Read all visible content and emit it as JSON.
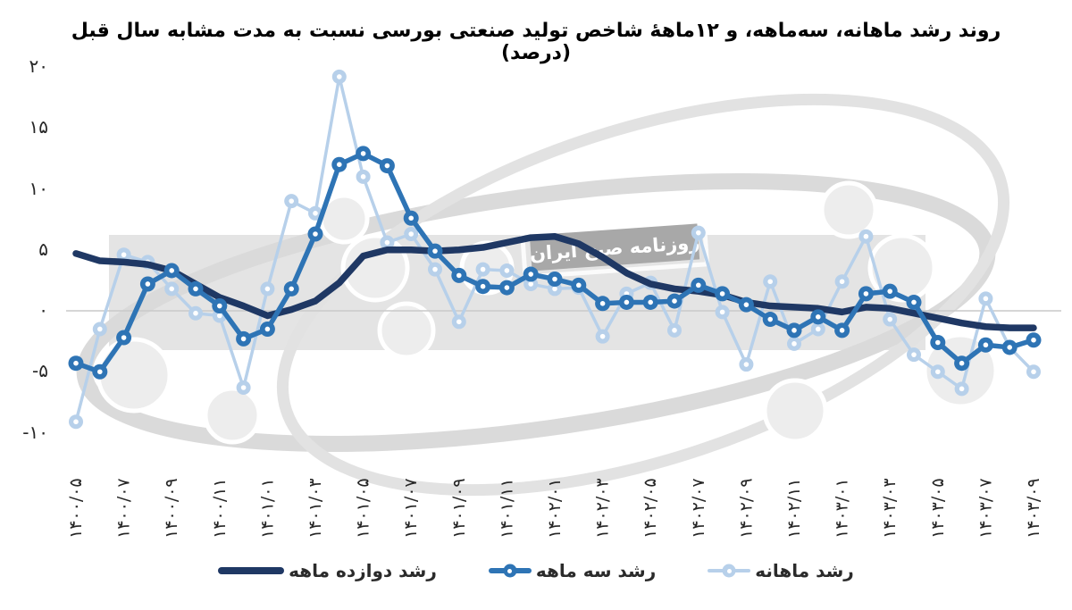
{
  "title": "روند رشد ماهانه، سه‌ماهه، و ۱۲ماهۀ شاخص تولید صنعتی بورسی نسبت به مدت مشابه سال قبل (درصد)",
  "watermark": {
    "stamp_text": "روزنامه صبح ایران"
  },
  "legend": [
    {
      "label": "رشد دوازده ماهه",
      "color": "#1F3864",
      "marker": false
    },
    {
      "label": "رشد سه ماهه",
      "color": "#2E74B5",
      "marker": true
    },
    {
      "label": "رشد ماهانه",
      "color": "#B7D0EA",
      "marker": true
    }
  ],
  "chart_data": {
    "type": "line",
    "title": "روند رشد ماهانه، سه‌ماهه، و ۱۲ماهۀ شاخص تولید صنعتی بورسی نسبت به مدت مشابه سال قبل (درصد)",
    "ylabel": "",
    "xlabel": "",
    "ylim": [
      -10,
      20
    ],
    "grid": "zero-line-only",
    "legend_position": "bottom",
    "band_color": "#e4e4e4",
    "zero_line_color": "#c9c9c9",
    "n_points": 41,
    "x_points_per_tick": 2,
    "x_tick_labels": [
      "۱۴۰۰/۰۵",
      "۱۴۰۰/۰۷",
      "۱۴۰۰/۰۹",
      "۱۴۰۰/۱۱",
      "۱۴۰۱/۰۱",
      "۱۴۰۱/۰۳",
      "۱۴۰۱/۰۵",
      "۱۴۰۱/۰۷",
      "۱۴۰۱/۰۹",
      "۱۴۰۱/۱۱",
      "۱۴۰۲/۰۱",
      "۱۴۰۲/۰۳",
      "۱۴۰۲/۰۵",
      "۱۴۰۲/۰۷",
      "۱۴۰۲/۰۹",
      "۱۴۰۲/۱۱",
      "۱۴۰۳/۰۱",
      "۱۴۰۳/۰۳",
      "۱۴۰۳/۰۵",
      "۱۴۰۳/۰۷",
      "۱۴۰۳/۰۹"
    ],
    "y_ticks": [
      {
        "value": 20,
        "label": "۲۰"
      },
      {
        "value": 15,
        "label": "۱۵"
      },
      {
        "value": 10,
        "label": "۱۰"
      },
      {
        "value": 5,
        "label": "۵"
      },
      {
        "value": 0,
        "label": "۰"
      },
      {
        "value": -5,
        "label": "-۵"
      },
      {
        "value": -10,
        "label": "-۱۰"
      }
    ],
    "series": [
      {
        "key": "twelve_month",
        "name": "رشد دوازده ماهه",
        "color": "#1F3864",
        "line_width": 7.5,
        "marker": false,
        "marker_radius": 0,
        "values": [
          4.7,
          4.1,
          4.0,
          3.8,
          3.3,
          2.2,
          1.1,
          0.4,
          -0.4,
          0.1,
          0.8,
          2.3,
          4.5,
          5.0,
          5.0,
          4.9,
          5.0,
          5.2,
          5.6,
          6.0,
          6.1,
          5.5,
          4.4,
          3.1,
          2.2,
          1.8,
          1.6,
          1.3,
          0.7,
          0.4,
          0.3,
          0.2,
          -0.1,
          0.3,
          0.2,
          -0.2,
          -0.6,
          -1.0,
          -1.3,
          -1.4,
          -1.4
        ]
      },
      {
        "key": "three_month",
        "name": "رشد سه ماهه",
        "color": "#2E74B5",
        "line_width": 5.5,
        "marker": true,
        "marker_radius": 8.5,
        "values": [
          -4.3,
          -5.0,
          -2.2,
          2.2,
          3.3,
          1.8,
          0.4,
          -2.3,
          -1.5,
          1.8,
          6.3,
          12.0,
          12.9,
          11.9,
          7.6,
          4.9,
          2.9,
          2.0,
          1.9,
          3.0,
          2.6,
          2.1,
          0.6,
          0.7,
          0.7,
          0.8,
          2.1,
          1.4,
          0.5,
          -0.7,
          -1.6,
          -0.5,
          -1.6,
          1.4,
          1.6,
          0.7,
          -2.6,
          -4.3,
          -2.8,
          -3.0,
          -2.4
        ]
      },
      {
        "key": "monthly",
        "name": "رشد ماهانه",
        "color": "#B7D0EA",
        "line_width": 3.5,
        "marker": true,
        "marker_radius": 8,
        "values": [
          -9.1,
          -1.5,
          4.6,
          4.0,
          1.8,
          -0.2,
          -0.4,
          -6.3,
          1.8,
          9.0,
          8.0,
          19.2,
          11.0,
          5.6,
          6.3,
          3.4,
          -0.9,
          3.4,
          3.3,
          2.2,
          1.8,
          1.9,
          -2.1,
          1.4,
          2.3,
          -1.6,
          6.4,
          -0.1,
          -4.4,
          2.4,
          -2.7,
          -1.5,
          2.4,
          6.1,
          -0.7,
          -3.6,
          -5.0,
          -6.4,
          1.0,
          -3.0,
          -5.0
        ]
      }
    ]
  }
}
